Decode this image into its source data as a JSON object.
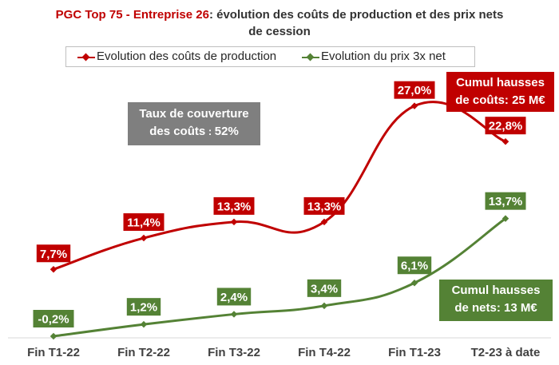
{
  "title_part1": "PGC Top 75 - Entreprise 26",
  "title_part2": ": évolution des coûts de production et des prix nets",
  "title_line2": "de cession",
  "colors": {
    "cost": "#c00000",
    "net": "#548235",
    "coverage": "#7f7f7f"
  },
  "annotations": {
    "coverage_line1": "Taux de couverture",
    "coverage_line2": "des coûts",
    "coverage_sep": " : ",
    "coverage_value": "52%",
    "cost_line1": "Cumul hausses",
    "cost_line2": "de coûts: 25 M€",
    "net_line1": "Cumul hausses",
    "net_line2": "de nets: 13 M€"
  },
  "chart_data": {
    "type": "line",
    "title": "PGC Top 75 - Entreprise 26: évolution des coûts de production et des prix nets de cession",
    "categories": [
      "Fin T1-22",
      "Fin T2-22",
      "Fin T3-22",
      "Fin T4-22",
      "Fin T1-23",
      "T2-23 à date"
    ],
    "legend": "top",
    "grid": false,
    "series": [
      {
        "name": "Evolution des coûts de production",
        "color": "#c00000",
        "values": [
          7.7,
          11.4,
          13.3,
          13.3,
          27.0,
          22.8
        ],
        "labels": [
          "7,7%",
          "11,4%",
          "13,3%",
          "13,3%",
          "27,0%",
          "22,8%"
        ]
      },
      {
        "name": "Evolution du prix 3x net",
        "color": "#548235",
        "values": [
          -0.2,
          1.2,
          2.4,
          3.4,
          6.1,
          13.7
        ],
        "labels": [
          "-0,2%",
          "1,2%",
          "2,4%",
          "3,4%",
          "6,1%",
          "13,7%"
        ]
      }
    ]
  }
}
